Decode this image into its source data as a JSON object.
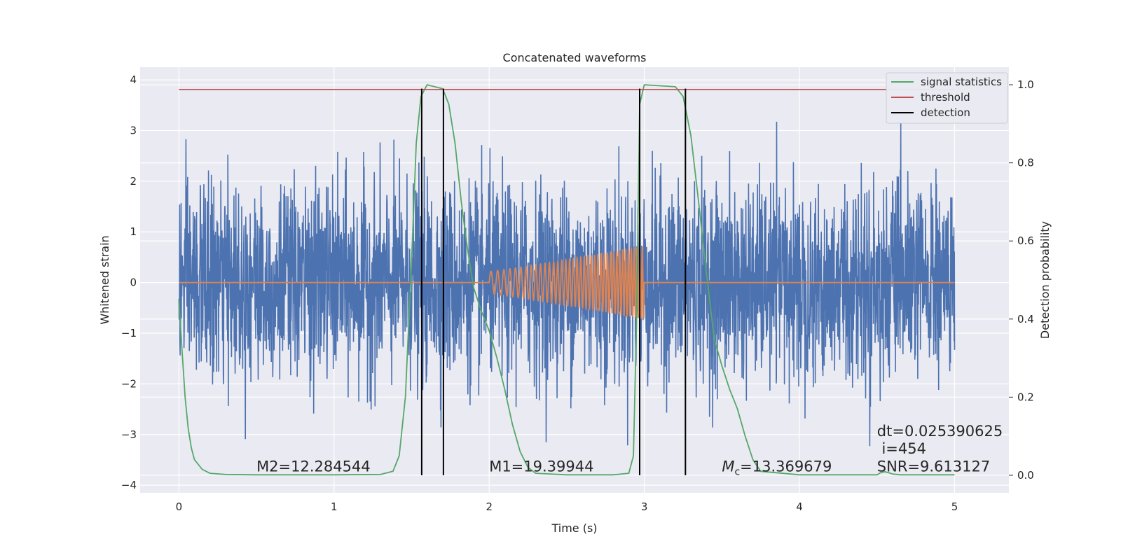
{
  "chart_data": {
    "type": "line",
    "title": "Concatenated waveforms",
    "xlabel": "Time (s)",
    "ylabel": "Whitened strain",
    "y2label": "Detection probability",
    "xlim": [
      -0.25,
      5.35
    ],
    "ylim": [
      -4.15,
      4.25
    ],
    "y2lim": [
      -0.045,
      1.045
    ],
    "xticks": [
      0,
      1,
      2,
      3,
      4,
      5
    ],
    "yticks": [
      -4,
      -3,
      -2,
      -1,
      0,
      1,
      2,
      3,
      4
    ],
    "y2ticks": [
      0.0,
      0.2,
      0.4,
      0.6,
      0.8,
      1.0
    ],
    "grid": true,
    "legend_position": "top-right",
    "colors": {
      "plot_background": "#eaeaf2",
      "grid": "#ffffff",
      "strain": "#4c72b0",
      "template": "#dd8452",
      "signal_statistics": "#55a868",
      "threshold": "#c44e52",
      "detection": "#000000"
    },
    "series": [
      {
        "name": "strain",
        "axis": "left",
        "description_kind": "noise",
        "x_range": [
          0,
          5
        ],
        "std": 0.95,
        "envelope": 3.3
      },
      {
        "name": "template",
        "axis": "left",
        "x_range": [
          0,
          5
        ],
        "chirp_start": 2.0,
        "chirp_end": 3.0,
        "amplitude_start": 0.22,
        "amplitude_end": 0.72
      },
      {
        "name": "signal statistics",
        "axis": "right",
        "x": [
          0,
          0.02,
          0.04,
          0.06,
          0.08,
          0.1,
          0.15,
          0.2,
          0.3,
          0.5,
          1.0,
          1.3,
          1.38,
          1.42,
          1.46,
          1.5,
          1.53,
          1.56,
          1.6,
          1.7,
          1.74,
          1.78,
          1.82,
          1.86,
          1.9,
          1.95,
          2.0,
          2.05,
          2.1,
          2.15,
          2.2,
          2.25,
          2.3,
          2.5,
          2.8,
          2.9,
          2.93,
          2.95,
          2.97,
          3.0,
          3.2,
          3.25,
          3.3,
          3.35,
          3.4,
          3.45,
          3.5,
          3.55,
          3.6,
          3.65,
          3.7,
          3.75,
          4.0,
          4.5,
          4.52,
          4.55,
          4.58,
          4.6,
          4.65,
          5.0
        ],
        "y": [
          0.45,
          0.32,
          0.2,
          0.12,
          0.07,
          0.04,
          0.015,
          0.005,
          0.002,
          0.001,
          0.001,
          0.002,
          0.01,
          0.05,
          0.2,
          0.55,
          0.85,
          0.97,
          1.0,
          0.99,
          0.95,
          0.85,
          0.7,
          0.58,
          0.48,
          0.42,
          0.37,
          0.3,
          0.22,
          0.13,
          0.06,
          0.02,
          0.005,
          0.001,
          0.001,
          0.005,
          0.05,
          0.4,
          0.95,
          1.0,
          0.995,
          0.97,
          0.87,
          0.7,
          0.52,
          0.35,
          0.28,
          0.22,
          0.17,
          0.1,
          0.04,
          0.01,
          0.001,
          0.001,
          0.006,
          0.009,
          0.006,
          0.003,
          0.001,
          0.001
        ]
      },
      {
        "name": "threshold",
        "axis": "right",
        "x": [
          0,
          5
        ],
        "y": [
          0.988,
          0.988
        ]
      },
      {
        "name": "detection",
        "axis": "right",
        "x": [
          1.565,
          1.705,
          2.97,
          3.265
        ],
        "y_range": [
          0.0,
          0.99
        ]
      }
    ],
    "legend": [
      "signal statistics",
      "threshold",
      "detection"
    ],
    "annotations": [
      {
        "key": "m2",
        "text": "M2=12.284544",
        "x": 0.5,
        "y": 0.01
      },
      {
        "key": "m1",
        "text": "M1=19.39944",
        "x": 2.0,
        "y": 0.01
      },
      {
        "key": "mc",
        "text": "=13.369679",
        "math_prefix": "M",
        "math_sub": "c",
        "x": 3.5,
        "y": 0.01
      },
      {
        "key": "dt",
        "text": "dt=0.025390625",
        "x": 4.5,
        "y": 0.1
      },
      {
        "key": "i",
        "text": " i=454",
        "x": 4.5,
        "y": 0.055
      },
      {
        "key": "snr",
        "text": "SNR=9.613127",
        "x": 4.5,
        "y": 0.01
      }
    ]
  }
}
